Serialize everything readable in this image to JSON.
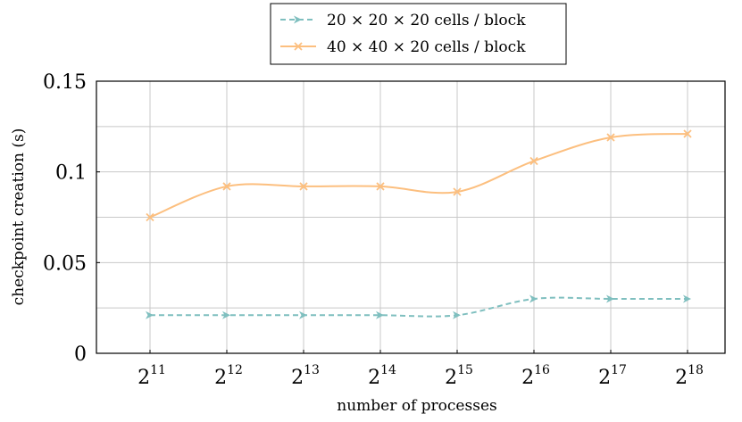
{
  "chart_data": {
    "type": "line",
    "xlabel": "number of processes",
    "ylabel": "checkpoint creation (s)",
    "categories": [
      {
        "base": "2",
        "exp": "11"
      },
      {
        "base": "2",
        "exp": "12"
      },
      {
        "base": "2",
        "exp": "13"
      },
      {
        "base": "2",
        "exp": "14"
      },
      {
        "base": "2",
        "exp": "15"
      },
      {
        "base": "2",
        "exp": "16"
      },
      {
        "base": "2",
        "exp": "17"
      },
      {
        "base": "2",
        "exp": "18"
      }
    ],
    "ylim": [
      0,
      0.15
    ],
    "yticks": [
      {
        "value": 0,
        "label": "0"
      },
      {
        "value": 0.05,
        "label": "0.05"
      },
      {
        "value": 0.1,
        "label": "0.1"
      },
      {
        "value": 0.15,
        "label": "0.15"
      }
    ],
    "grid": true,
    "legend_position": "top-center",
    "series": [
      {
        "name": "20 × 20 × 20 cells / block",
        "color": "#7fbfbf",
        "style": "dashed",
        "marker": "arrow",
        "values": [
          0.021,
          0.021,
          0.021,
          0.021,
          0.021,
          0.03,
          0.03,
          0.03
        ]
      },
      {
        "name": "40 × 40 × 20 cells / block",
        "color": "#fcbf7f",
        "style": "solid",
        "marker": "x",
        "values": [
          0.075,
          0.092,
          0.092,
          0.092,
          0.089,
          0.106,
          0.119,
          0.121
        ]
      }
    ]
  }
}
